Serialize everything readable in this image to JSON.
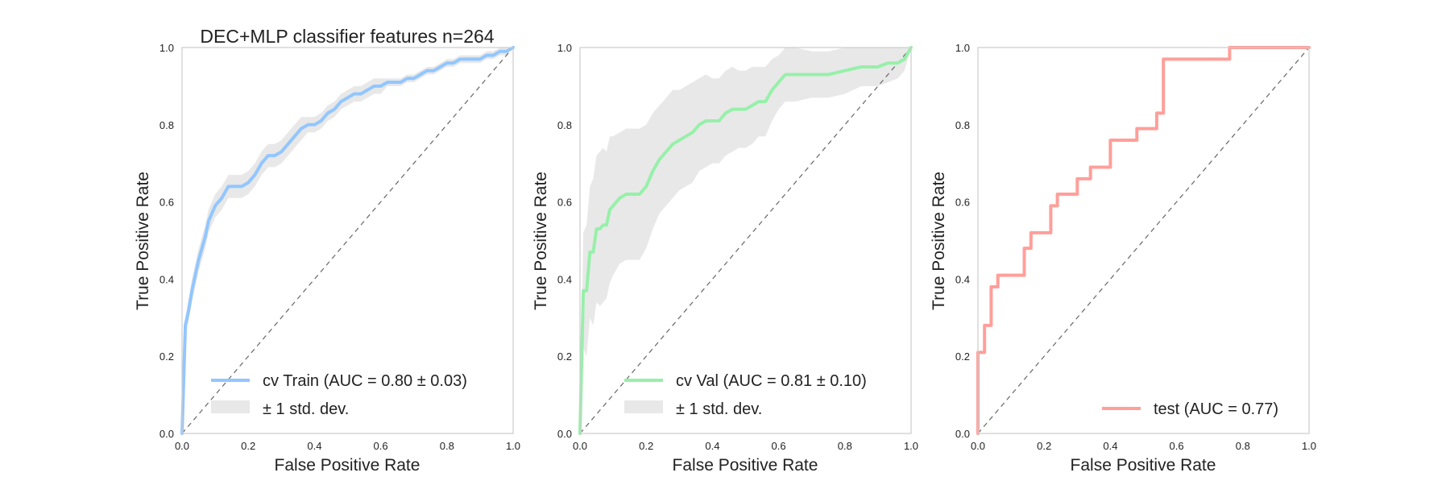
{
  "chart_data": [
    {
      "type": "line",
      "title": "DEC+MLP classifier features n=264",
      "xlabel": "False Positive Rate",
      "ylabel": "True Positive Rate",
      "xlim": [
        0,
        1
      ],
      "ylim": [
        0,
        1
      ],
      "x_ticks": [
        "0.0",
        "0.2",
        "0.4",
        "0.6",
        "0.8",
        "1.0"
      ],
      "y_ticks": [
        "0.0",
        "0.2",
        "0.4",
        "0.6",
        "0.8",
        "1.0"
      ],
      "grid": false,
      "legend_position": "lower right",
      "series": [
        {
          "name": "cv Train (AUC = 0.80 ± 0.03)",
          "color": "#92c6ff",
          "x": [
            0,
            0.01,
            0.02,
            0.03,
            0.04,
            0.05,
            0.06,
            0.07,
            0.08,
            0.1,
            0.12,
            0.14,
            0.16,
            0.18,
            0.2,
            0.22,
            0.24,
            0.26,
            0.28,
            0.3,
            0.32,
            0.34,
            0.36,
            0.38,
            0.4,
            0.42,
            0.44,
            0.46,
            0.48,
            0.5,
            0.52,
            0.54,
            0.56,
            0.58,
            0.6,
            0.62,
            0.64,
            0.66,
            0.68,
            0.7,
            0.72,
            0.74,
            0.76,
            0.78,
            0.8,
            0.82,
            0.84,
            0.86,
            0.88,
            0.9,
            0.92,
            0.94,
            0.96,
            0.98,
            1.0
          ],
          "y": [
            0,
            0.28,
            0.32,
            0.37,
            0.41,
            0.45,
            0.48,
            0.51,
            0.55,
            0.59,
            0.61,
            0.64,
            0.64,
            0.64,
            0.65,
            0.67,
            0.7,
            0.72,
            0.72,
            0.73,
            0.75,
            0.77,
            0.79,
            0.8,
            0.8,
            0.81,
            0.83,
            0.84,
            0.86,
            0.87,
            0.88,
            0.88,
            0.89,
            0.9,
            0.9,
            0.91,
            0.91,
            0.91,
            0.92,
            0.92,
            0.93,
            0.94,
            0.94,
            0.95,
            0.96,
            0.96,
            0.97,
            0.97,
            0.97,
            0.97,
            0.98,
            0.98,
            0.99,
            0.99,
            1.0
          ],
          "std": [
            0,
            0.02,
            0.03,
            0.03,
            0.03,
            0.03,
            0.03,
            0.03,
            0.03,
            0.03,
            0.03,
            0.03,
            0.03,
            0.03,
            0.03,
            0.03,
            0.03,
            0.03,
            0.03,
            0.03,
            0.03,
            0.03,
            0.03,
            0.02,
            0.02,
            0.02,
            0.02,
            0.02,
            0.02,
            0.02,
            0.02,
            0.02,
            0.02,
            0.02,
            0.02,
            0.01,
            0.01,
            0.01,
            0.01,
            0.01,
            0.01,
            0.01,
            0.01,
            0.01,
            0.01,
            0.01,
            0.01,
            0.01,
            0.01,
            0.01,
            0.01,
            0.01,
            0.01,
            0.01,
            0
          ]
        }
      ],
      "band_label": "± 1 std. dev.",
      "chance_line": true
    },
    {
      "type": "line",
      "title": "",
      "xlabel": "False Positive Rate",
      "ylabel": "True Positive Rate",
      "xlim": [
        0,
        1
      ],
      "ylim": [
        0,
        1
      ],
      "x_ticks": [
        "0.0",
        "0.2",
        "0.4",
        "0.6",
        "0.8",
        "1.0"
      ],
      "y_ticks": [
        "0.0",
        "0.2",
        "0.4",
        "0.6",
        "0.8",
        "1.0"
      ],
      "grid": false,
      "legend_position": "lower right",
      "series": [
        {
          "name": "cv Val (AUC = 0.81 ± 0.10)",
          "color": "#97f0aa",
          "x": [
            0,
            0.01,
            0.02,
            0.03,
            0.04,
            0.05,
            0.06,
            0.07,
            0.08,
            0.09,
            0.1,
            0.12,
            0.14,
            0.16,
            0.18,
            0.2,
            0.22,
            0.24,
            0.26,
            0.28,
            0.3,
            0.32,
            0.34,
            0.36,
            0.38,
            0.4,
            0.42,
            0.44,
            0.46,
            0.48,
            0.5,
            0.52,
            0.54,
            0.56,
            0.58,
            0.6,
            0.62,
            0.65,
            0.7,
            0.75,
            0.8,
            0.85,
            0.9,
            0.93,
            0.96,
            0.98,
            1.0
          ],
          "y": [
            0,
            0.37,
            0.37,
            0.47,
            0.47,
            0.53,
            0.53,
            0.54,
            0.54,
            0.58,
            0.59,
            0.61,
            0.62,
            0.62,
            0.62,
            0.64,
            0.68,
            0.71,
            0.73,
            0.75,
            0.76,
            0.77,
            0.78,
            0.8,
            0.81,
            0.81,
            0.81,
            0.83,
            0.84,
            0.84,
            0.84,
            0.85,
            0.86,
            0.86,
            0.89,
            0.91,
            0.93,
            0.93,
            0.93,
            0.93,
            0.94,
            0.95,
            0.95,
            0.96,
            0.96,
            0.97,
            1.0
          ],
          "std": [
            0,
            0.15,
            0.17,
            0.17,
            0.19,
            0.19,
            0.2,
            0.2,
            0.19,
            0.19,
            0.18,
            0.17,
            0.17,
            0.17,
            0.17,
            0.16,
            0.15,
            0.14,
            0.14,
            0.14,
            0.13,
            0.13,
            0.13,
            0.12,
            0.12,
            0.11,
            0.11,
            0.11,
            0.11,
            0.1,
            0.1,
            0.1,
            0.09,
            0.09,
            0.08,
            0.07,
            0.07,
            0.07,
            0.06,
            0.06,
            0.06,
            0.05,
            0.05,
            0.05,
            0.04,
            0.03,
            0
          ]
        }
      ],
      "band_label": "± 1 std. dev.",
      "chance_line": true
    },
    {
      "type": "line",
      "title": "",
      "xlabel": "False Positive Rate",
      "ylabel": "True Positive Rate",
      "xlim": [
        0,
        1
      ],
      "ylim": [
        0,
        1
      ],
      "x_ticks": [
        "0.0",
        "0.2",
        "0.4",
        "0.6",
        "0.8",
        "1.0"
      ],
      "y_ticks": [
        "0.0",
        "0.2",
        "0.4",
        "0.6",
        "0.8",
        "1.0"
      ],
      "grid": false,
      "legend_position": "lower right",
      "series": [
        {
          "name": "test (AUC = 0.77)",
          "color": "#ff9f9a",
          "x": [
            0,
            0,
            0.02,
            0.02,
            0.04,
            0.04,
            0.06,
            0.06,
            0.14,
            0.14,
            0.16,
            0.16,
            0.22,
            0.22,
            0.24,
            0.24,
            0.3,
            0.3,
            0.34,
            0.34,
            0.4,
            0.4,
            0.48,
            0.48,
            0.54,
            0.54,
            0.56,
            0.56,
            0.76,
            0.76,
            1.0
          ],
          "y": [
            0,
            0.21,
            0.21,
            0.28,
            0.28,
            0.38,
            0.38,
            0.41,
            0.41,
            0.48,
            0.48,
            0.52,
            0.52,
            0.59,
            0.59,
            0.62,
            0.62,
            0.66,
            0.66,
            0.69,
            0.69,
            0.76,
            0.76,
            0.79,
            0.79,
            0.83,
            0.83,
            0.97,
            0.97,
            1.0,
            1.0
          ]
        }
      ],
      "chance_line": true
    }
  ]
}
